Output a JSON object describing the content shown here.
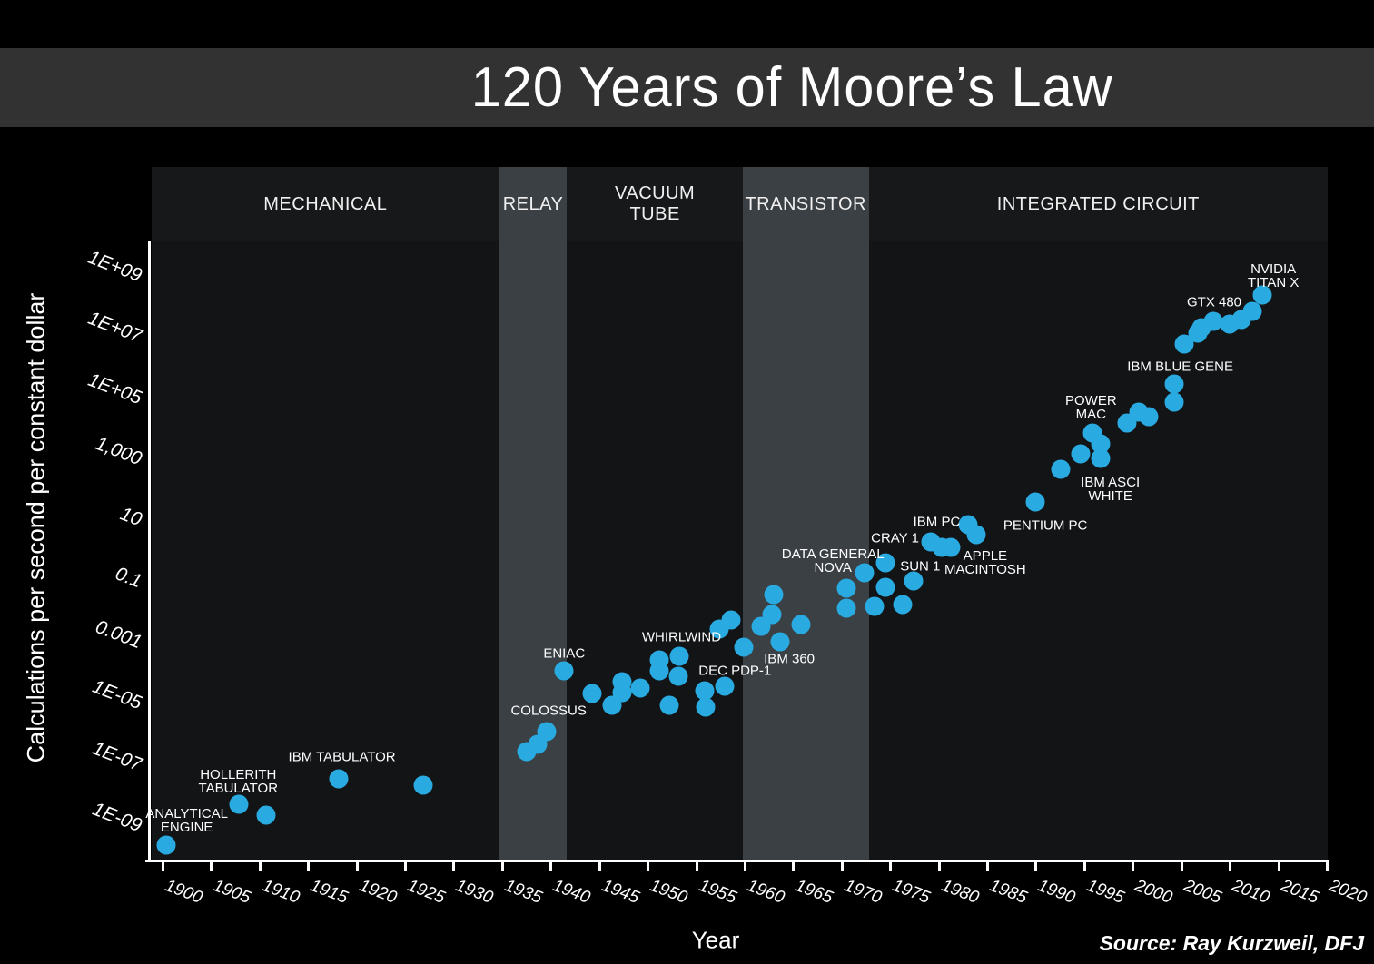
{
  "page": {
    "title": "120 Years of Moore’s Law",
    "source_note": "Source: Ray Kurzweil, DFJ"
  },
  "colors": {
    "background": "#000000",
    "title_bar": "#323232",
    "plot_background": "#131416",
    "era_highlight_band": "#3b4045",
    "era_header_dark": "#171819",
    "point": "#29abe2",
    "axis": "#ffffff",
    "text": "#ffffff"
  },
  "chart_data": {
    "type": "scatter",
    "title": "120 Years of Moore’s Law",
    "xlabel": "Year",
    "ylabel": "Calculations per second per constant dollar",
    "source": "Source: Ray Kurzweil, DFJ",
    "grid": false,
    "legend": "none",
    "axes": {
      "x_min": 1898.88,
      "x_max": 2020.1,
      "y_scale": "log10",
      "y_log_min": -10.04,
      "y_log_max": 10.19,
      "x_tick_step": 5
    },
    "x_ticks": [
      1900,
      1905,
      1910,
      1915,
      1920,
      1925,
      1930,
      1935,
      1940,
      1945,
      1950,
      1955,
      1960,
      1965,
      1970,
      1975,
      1980,
      1985,
      1990,
      1995,
      2000,
      2005,
      2010,
      2015,
      2020
    ],
    "y_ticks": [
      {
        "label": "1E+09",
        "log": 9
      },
      {
        "label": "1E+07",
        "log": 7
      },
      {
        "label": "1E+05",
        "log": 5
      },
      {
        "label": "1,000",
        "log": 3
      },
      {
        "label": "10",
        "log": 1
      },
      {
        "label": "0.1",
        "log": -1
      },
      {
        "label": "0.001",
        "log": -3
      },
      {
        "label": "1E-05",
        "log": -5
      },
      {
        "label": "1E-07",
        "log": -7
      },
      {
        "label": "1E-09",
        "log": -9
      }
    ],
    "eras": [
      {
        "label": "MECHANICAL",
        "lines": "MECHANICAL",
        "start": 1898.88,
        "end": 1934.7,
        "highlighted": false
      },
      {
        "label": "RELAY",
        "lines": "RELAY",
        "start": 1934.7,
        "end": 1941.7,
        "highlighted": true
      },
      {
        "label": "VACUUM TUBE",
        "lines": "VACUUM\nTUBE",
        "start": 1941.7,
        "end": 1959.8,
        "highlighted": false
      },
      {
        "label": "TRANSISTOR",
        "lines": "TRANSISTOR",
        "start": 1959.8,
        "end": 1972.8,
        "highlighted": true
      },
      {
        "label": "INTEGRATED CIRCUIT",
        "lines": "INTEGRATED CIRCUIT",
        "start": 1972.8,
        "end": 2020.1,
        "highlighted": false
      }
    ],
    "points": [
      [
        1900.4,
        -9.56
      ],
      [
        1907.9,
        -8.23
      ],
      [
        1910.7,
        -8.58
      ],
      [
        1918.2,
        -7.4
      ],
      [
        1926.9,
        -7.6
      ],
      [
        1937.5,
        -6.5
      ],
      [
        1938.7,
        -6.27
      ],
      [
        1939.6,
        -5.85
      ],
      [
        1941.4,
        -3.86
      ],
      [
        1944.3,
        -4.6
      ],
      [
        1946.3,
        -4.99
      ],
      [
        1947.4,
        -4.22
      ],
      [
        1947.4,
        -4.57
      ],
      [
        1949.2,
        -4.42
      ],
      [
        1951.2,
        -3.5
      ],
      [
        1951.2,
        -3.86
      ],
      [
        1952.2,
        -4.99
      ],
      [
        1953.3,
        -3.38
      ],
      [
        1953.2,
        -4.04
      ],
      [
        1955.9,
        -4.51
      ],
      [
        1956.0,
        -5.05
      ],
      [
        1957.9,
        -4.37
      ],
      [
        1957.4,
        -2.49
      ],
      [
        1958.6,
        -2.2
      ],
      [
        1959.9,
        -3.09
      ],
      [
        1961.7,
        -2.41
      ],
      [
        1962.8,
        -2.02
      ],
      [
        1963.0,
        -1.37
      ],
      [
        1963.7,
        -2.91
      ],
      [
        1965.8,
        -2.35
      ],
      [
        1970.5,
        -1.16
      ],
      [
        1970.5,
        -1.81
      ],
      [
        1972.4,
        -0.65
      ],
      [
        1973.4,
        -1.75
      ],
      [
        1974.5,
        -0.33
      ],
      [
        1974.5,
        -1.13
      ],
      [
        1976.3,
        -1.69
      ],
      [
        1977.4,
        -0.92
      ],
      [
        1979.2,
        0.36
      ],
      [
        1980.3,
        0.18
      ],
      [
        1981.3,
        0.18
      ],
      [
        1983.0,
        0.92
      ],
      [
        1983.9,
        0.59
      ],
      [
        1990.0,
        1.66
      ],
      [
        1992.6,
        2.73
      ],
      [
        1994.6,
        3.23
      ],
      [
        1995.9,
        3.92
      ],
      [
        1996.7,
        3.56
      ],
      [
        1996.7,
        3.08
      ],
      [
        1999.4,
        4.25
      ],
      [
        2000.6,
        4.6
      ],
      [
        2001.7,
        4.45
      ],
      [
        2004.3,
        4.93
      ],
      [
        2004.3,
        5.53
      ],
      [
        2005.3,
        6.83
      ],
      [
        2006.7,
        7.19
      ],
      [
        2007.1,
        7.37
      ],
      [
        2008.3,
        7.58
      ],
      [
        2010.0,
        7.49
      ],
      [
        2011.2,
        7.63
      ],
      [
        2012.3,
        7.9
      ],
      [
        2013.4,
        8.44
      ]
    ],
    "annotations": [
      {
        "text": "ANALYTICAL\nENGINE",
        "year": 1902.5,
        "log": -8.76
      },
      {
        "text": "HOLLERITH\nTABULATOR",
        "year": 1907.8,
        "log": -7.49
      },
      {
        "text": "IBM TABULATOR",
        "year": 1918.5,
        "log": -6.68
      },
      {
        "text": "COLOSSUS",
        "year": 1939.8,
        "log": -5.17
      },
      {
        "text": "ENIAC",
        "year": 1941.4,
        "log": -3.3
      },
      {
        "text": "WHIRLWIND",
        "year": 1953.5,
        "log": -2.76
      },
      {
        "text": "DEC PDP-1",
        "year": 1959.0,
        "log": -3.86
      },
      {
        "text": "IBM 360",
        "year": 1964.6,
        "log": -3.48
      },
      {
        "text": "DATA GENERAL\nNOVA",
        "year": 1969.1,
        "log": -0.27
      },
      {
        "text": "CRAY 1",
        "year": 1975.5,
        "log": 0.48
      },
      {
        "text": "SUN 1",
        "year": 1978.1,
        "log": -0.45
      },
      {
        "text": "IBM PC",
        "year": 1979.8,
        "log": 1.0
      },
      {
        "text": "APPLE\nMACINTOSH",
        "year": 1984.8,
        "log": -0.33
      },
      {
        "text": "PENTIUM PC",
        "year": 1991.0,
        "log": 0.89
      },
      {
        "text": "IBM ASCI\nWHITE",
        "year": 1997.7,
        "log": 2.08
      },
      {
        "text": "POWER\nMAC",
        "year": 1995.7,
        "log": 4.75
      },
      {
        "text": "IBM BLUE GENE",
        "year": 2004.9,
        "log": 6.09
      },
      {
        "text": "GTX 480",
        "year": 2008.4,
        "log": 8.2
      },
      {
        "text": "NVIDIA TITAN X",
        "year": 2014.5,
        "log": 9.06
      }
    ]
  }
}
